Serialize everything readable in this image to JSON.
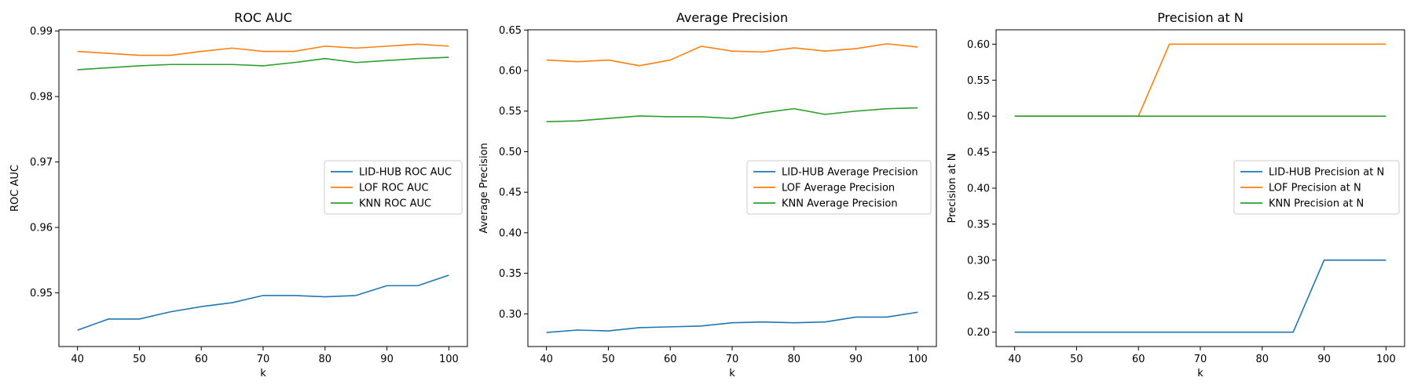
{
  "chart_data": [
    {
      "type": "line",
      "title": "ROC AUC",
      "xlabel": "k",
      "ylabel": "ROC AUC",
      "x": [
        40,
        45,
        50,
        55,
        60,
        65,
        70,
        75,
        80,
        85,
        90,
        95,
        100
      ],
      "xlim": [
        37,
        103
      ],
      "ylim": [
        0.9418,
        0.9902
      ],
      "xticks": [
        40,
        50,
        60,
        70,
        80,
        90,
        100
      ],
      "yticks": [
        0.95,
        0.96,
        0.97,
        0.98,
        0.99
      ],
      "tick_labels_x": [
        "40",
        "50",
        "60",
        "70",
        "80",
        "90",
        "100"
      ],
      "tick_labels_y": [
        "0.95",
        "0.96",
        "0.97",
        "0.98",
        "0.99"
      ],
      "grid": false,
      "legend": "center-right",
      "series": [
        {
          "name": "LID-HUB ROC AUC",
          "color": "#1f77b4",
          "values": [
            0.9443,
            0.946,
            0.946,
            0.9471,
            0.9479,
            0.9485,
            0.9496,
            0.9496,
            0.9494,
            0.9496,
            0.9511,
            0.9511,
            0.9527
          ]
        },
        {
          "name": "LOF ROC AUC",
          "color": "#ff7f0e",
          "values": [
            0.9869,
            0.9866,
            0.9863,
            0.9863,
            0.9869,
            0.9874,
            0.9869,
            0.9869,
            0.9877,
            0.9874,
            0.9877,
            0.988,
            0.9877
          ]
        },
        {
          "name": "KNN ROC AUC",
          "color": "#2ca02c",
          "values": [
            0.9841,
            0.9844,
            0.9847,
            0.9849,
            0.9849,
            0.9849,
            0.9847,
            0.9852,
            0.9858,
            0.9852,
            0.9855,
            0.9858,
            0.986
          ]
        }
      ]
    },
    {
      "type": "line",
      "title": "Average Precision",
      "xlabel": "k",
      "ylabel": "Average Precision",
      "x": [
        40,
        45,
        50,
        55,
        60,
        65,
        70,
        75,
        80,
        85,
        90,
        95,
        100
      ],
      "xlim": [
        37,
        103
      ],
      "ylim": [
        0.2597,
        0.6503
      ],
      "xticks": [
        40,
        50,
        60,
        70,
        80,
        90,
        100
      ],
      "yticks": [
        0.3,
        0.35,
        0.4,
        0.45,
        0.5,
        0.55,
        0.6,
        0.65
      ],
      "tick_labels_x": [
        "40",
        "50",
        "60",
        "70",
        "80",
        "90",
        "100"
      ],
      "tick_labels_y": [
        "0.30",
        "0.35",
        "0.40",
        "0.45",
        "0.50",
        "0.55",
        "0.60",
        "0.65"
      ],
      "grid": false,
      "legend": "center-right",
      "series": [
        {
          "name": "LID-HUB Average Precision",
          "color": "#1f77b4",
          "values": [
            0.277,
            0.28,
            0.279,
            0.283,
            0.284,
            0.285,
            0.289,
            0.29,
            0.289,
            0.29,
            0.296,
            0.296,
            0.302
          ]
        },
        {
          "name": "LOF Average Precision",
          "color": "#ff7f0e",
          "values": [
            0.613,
            0.611,
            0.613,
            0.606,
            0.613,
            0.63,
            0.624,
            0.623,
            0.628,
            0.624,
            0.627,
            0.633,
            0.629
          ]
        },
        {
          "name": "KNN Average Precision",
          "color": "#2ca02c",
          "values": [
            0.537,
            0.538,
            0.541,
            0.544,
            0.543,
            0.543,
            0.541,
            0.548,
            0.553,
            0.546,
            0.55,
            0.553,
            0.554
          ]
        }
      ]
    },
    {
      "type": "line",
      "title": "Precision at N",
      "xlabel": "k",
      "ylabel": "Precision at N",
      "x": [
        40,
        45,
        50,
        55,
        60,
        65,
        70,
        75,
        80,
        85,
        90,
        95,
        100
      ],
      "xlim": [
        37,
        103
      ],
      "ylim": [
        0.18,
        0.62
      ],
      "xticks": [
        40,
        50,
        60,
        70,
        80,
        90,
        100
      ],
      "yticks": [
        0.2,
        0.25,
        0.3,
        0.35,
        0.4,
        0.45,
        0.5,
        0.55,
        0.6
      ],
      "tick_labels_x": [
        "40",
        "50",
        "60",
        "70",
        "80",
        "90",
        "100"
      ],
      "tick_labels_y": [
        "0.20",
        "0.25",
        "0.30",
        "0.35",
        "0.40",
        "0.45",
        "0.50",
        "0.55",
        "0.60"
      ],
      "grid": false,
      "legend": "center-right",
      "series": [
        {
          "name": "LID-HUB Precision at N",
          "color": "#1f77b4",
          "values": [
            0.2,
            0.2,
            0.2,
            0.2,
            0.2,
            0.2,
            0.2,
            0.2,
            0.2,
            0.2,
            0.3,
            0.3,
            0.3
          ]
        },
        {
          "name": "LOF Precision at N",
          "color": "#ff7f0e",
          "values": [
            0.5,
            0.5,
            0.5,
            0.5,
            0.5,
            0.6,
            0.6,
            0.6,
            0.6,
            0.6,
            0.6,
            0.6,
            0.6
          ]
        },
        {
          "name": "KNN Precision at N",
          "color": "#2ca02c",
          "values": [
            0.5,
            0.5,
            0.5,
            0.5,
            0.5,
            0.5,
            0.5,
            0.5,
            0.5,
            0.5,
            0.5,
            0.5,
            0.5
          ]
        }
      ]
    }
  ]
}
